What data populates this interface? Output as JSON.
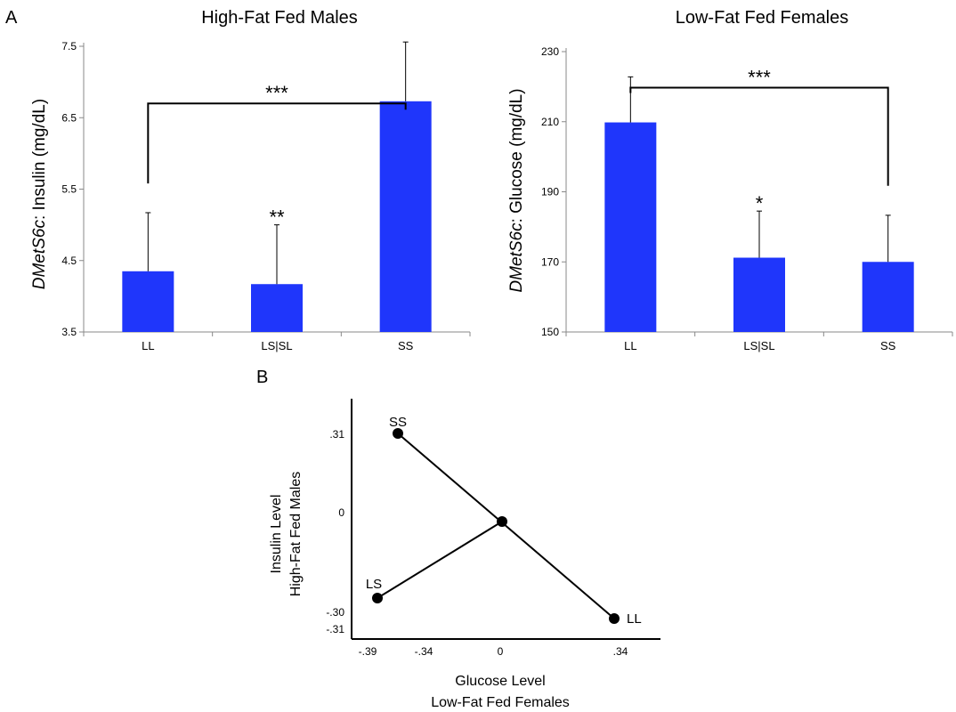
{
  "panels": {
    "a_letter": "A",
    "b_letter": "B"
  },
  "chart_data": [
    {
      "type": "bar",
      "title": "High-Fat Fed Males",
      "ylabel_italic": "DMetS6c",
      "ylabel_rest": ": Insulin (mg/dL)",
      "categories": [
        "LL",
        "LS|SL",
        "SS"
      ],
      "values": [
        4.35,
        4.17,
        6.73
      ],
      "errors": [
        0.82,
        0.83,
        0.83
      ],
      "ylim": [
        3.5,
        7.5
      ],
      "yticks": [
        "3.5",
        "4.5",
        "5.5",
        "6.5",
        "7.5"
      ],
      "yticks_values": [
        3.5,
        4.5,
        5.5,
        6.5,
        7.5
      ],
      "bar_color": "#1f36fb",
      "annotations": [
        {
          "text": "**",
          "category": "LS|SL"
        },
        {
          "text": "***",
          "bracket": [
            "LL",
            "SS"
          ],
          "bracket_y": 6.7,
          "left_end": 5.58
        }
      ]
    },
    {
      "type": "bar",
      "title": "Low-Fat Fed Females",
      "ylabel_italic": "DMetS6c",
      "ylabel_rest": ": Glucose (mg/dL)",
      "categories": [
        "LL",
        "LS|SL",
        "SS"
      ],
      "values": [
        209.8,
        171.2,
        170.0
      ],
      "errors": [
        13.0,
        13.3,
        13.3
      ],
      "ylim": [
        150,
        230
      ],
      "yticks": [
        "150",
        "170",
        "190",
        "210",
        "230"
      ],
      "yticks_values": [
        150,
        170,
        190,
        210,
        230
      ],
      "bar_color": "#1f36fb",
      "annotations": [
        {
          "text": "*",
          "category": "LS|SL"
        },
        {
          "text": "***",
          "bracket": [
            "LL",
            "SS"
          ],
          "bracket_y": 219.7,
          "right_end": 191.7
        }
      ]
    },
    {
      "type": "line",
      "xlabel_line1": "Glucose Level",
      "xlabel_line2": "Low-Fat Fed Females",
      "ylabel_line1": "Insulin Level",
      "ylabel_line2": "High-Fat Fed Males",
      "xticks": [
        {
          "value": -0.39,
          "label": "-.39"
        },
        {
          "value": -0.34,
          "label": "-.34"
        },
        {
          "value": 0,
          "label": "0"
        },
        {
          "value": 0.34,
          "label": ".34"
        }
      ],
      "yticks": [
        {
          "value": 0.31,
          "label": ".31"
        },
        {
          "value": 0,
          "label": "0"
        },
        {
          "value": -0.3,
          "label": "-.30"
        },
        {
          "value": -0.31,
          "label": "-.31"
        }
      ],
      "points": [
        {
          "label": "SS",
          "x": -0.34,
          "y": 0.31
        },
        {
          "label": "",
          "x": 0.0,
          "y": -0.025
        },
        {
          "label": "LL",
          "x": 0.34,
          "y": -0.31
        },
        {
          "label": "LS",
          "x": -0.39,
          "y": -0.3
        }
      ],
      "segments": [
        [
          "SS",
          "LL"
        ],
        [
          "LS",
          ""
        ]
      ],
      "xlim": [
        -0.43,
        0.44
      ],
      "ylim": [
        -0.36,
        0.36
      ]
    }
  ]
}
